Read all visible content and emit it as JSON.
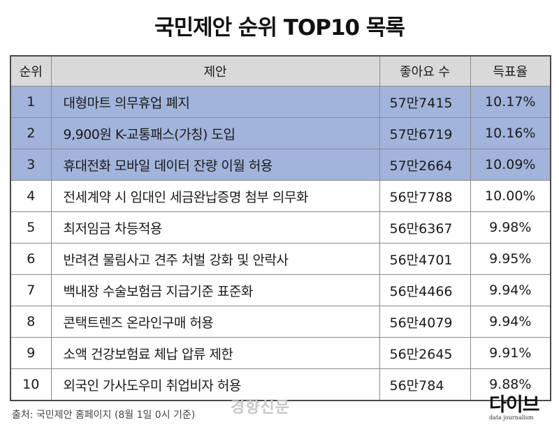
{
  "title": "국민제안 순위 TOP10 목록",
  "table": {
    "headers": [
      "순위",
      "제안",
      "좋아요 수",
      "득표율"
    ],
    "highlight_color": "#a2b4dc",
    "rows": [
      {
        "rank": "1",
        "proposal": "대형마트 의무휴업 폐지",
        "likes": "57만7415",
        "pct": "10.17%",
        "highlight": true
      },
      {
        "rank": "2",
        "proposal": "9,900원 K-교통패스(가칭) 도입",
        "likes": "57만6719",
        "pct": "10.16%",
        "highlight": true
      },
      {
        "rank": "3",
        "proposal": "휴대전화 모바일 데이터 잔량 이월 허용",
        "likes": "57만2664",
        "pct": "10.09%",
        "highlight": true
      },
      {
        "rank": "4",
        "proposal": "전세계약 시 임대인 세금완납증명 첨부 의무화",
        "likes": "56만7788",
        "pct": "10.00%",
        "highlight": false
      },
      {
        "rank": "5",
        "proposal": "최저임금 차등적용",
        "likes": "56만6367",
        "pct": "9.98%",
        "highlight": false
      },
      {
        "rank": "6",
        "proposal": "반려견 물림사고 견주 처벌 강화 및 안락사",
        "likes": "56만4701",
        "pct": "9.95%",
        "highlight": false
      },
      {
        "rank": "7",
        "proposal": "백내장 수술보험금 지급기준 표준화",
        "likes": "56만4466",
        "pct": "9.94%",
        "highlight": false
      },
      {
        "rank": "8",
        "proposal": "콘택트렌즈 온라인구매 허용",
        "likes": "56만4079",
        "pct": "9.94%",
        "highlight": false
      },
      {
        "rank": "9",
        "proposal": "소액 건강보험료 체납 압류 제한",
        "likes": "56만2645",
        "pct": "9.91%",
        "highlight": false
      },
      {
        "rank": "10",
        "proposal": "외국인 가사도우미 취업비자 허용",
        "likes": "56만784",
        "pct": "9.88%",
        "highlight": false
      }
    ]
  },
  "footer": {
    "source": "출처: 국민제안 홈페이지 (8월 1일 0시 기준)",
    "watermark": "경향신문",
    "logo_main": "다이브",
    "logo_sub": "data journalism"
  }
}
